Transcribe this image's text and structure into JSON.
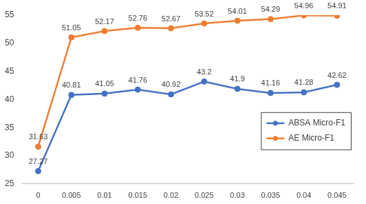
{
  "chart_data": {
    "type": "line",
    "categories": [
      "0",
      "0.005",
      "0.01",
      "0.015",
      "0.02",
      "0.025",
      "0.03",
      "0.035",
      "0.04",
      "0.045"
    ],
    "series": [
      {
        "name": "ABSA Micro-F1",
        "color": "#4472c4",
        "marker": "circle",
        "values": [
          27.27,
          40.81,
          41.05,
          41.76,
          40.92,
          43.2,
          41.9,
          41.16,
          41.28,
          42.62
        ]
      },
      {
        "name": "AE Micro-F1",
        "color": "#ed7d31",
        "marker": "circle",
        "values": [
          31.63,
          51.05,
          52.17,
          52.76,
          52.67,
          53.52,
          54.01,
          54.29,
          54.96,
          54.91
        ]
      }
    ],
    "ylim": [
      25,
      55
    ],
    "yticks": [
      25,
      30,
      35,
      40,
      45,
      50,
      55
    ],
    "grid": false,
    "data_labels": true,
    "legend": "lower right"
  }
}
